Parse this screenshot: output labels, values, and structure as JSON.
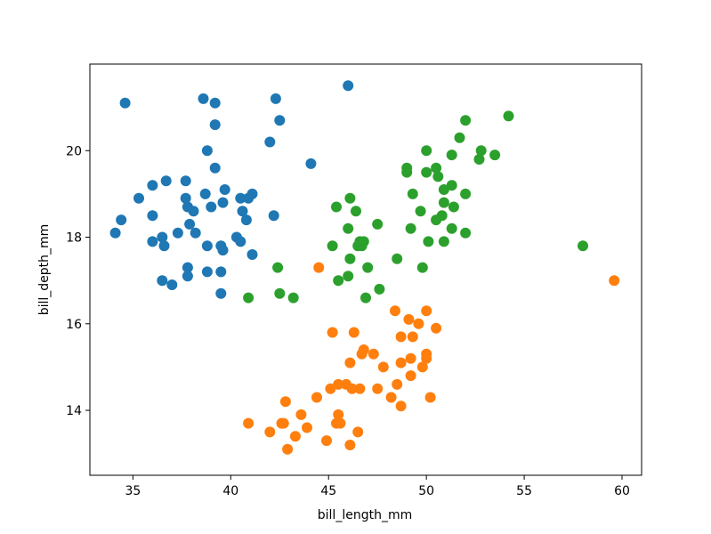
{
  "chart_data": {
    "type": "scatter",
    "title": "",
    "xlabel": "bill_length_mm",
    "ylabel": "bill_depth_mm",
    "xlim": [
      32.8,
      61.0
    ],
    "ylim": [
      12.5,
      22.0
    ],
    "xticks": [
      35,
      40,
      45,
      50,
      55,
      60
    ],
    "yticks": [
      14,
      16,
      18,
      20
    ],
    "grid": false,
    "legend": "none",
    "series": [
      {
        "color": "#1f77b4",
        "points": [
          [
            34.6,
            21.1
          ],
          [
            38.6,
            21.2
          ],
          [
            39.2,
            21.1
          ],
          [
            42.3,
            21.2
          ],
          [
            46.0,
            21.5
          ],
          [
            39.2,
            20.6
          ],
          [
            42.5,
            20.7
          ],
          [
            38.8,
            20.0
          ],
          [
            42.0,
            20.2
          ],
          [
            39.2,
            19.6
          ],
          [
            44.1,
            19.7
          ],
          [
            36.0,
            19.2
          ],
          [
            36.7,
            19.3
          ],
          [
            37.7,
            19.3
          ],
          [
            35.3,
            18.9
          ],
          [
            37.7,
            18.9
          ],
          [
            38.7,
            19.0
          ],
          [
            39.7,
            19.1
          ],
          [
            37.8,
            18.7
          ],
          [
            38.1,
            18.6
          ],
          [
            39.0,
            18.7
          ],
          [
            39.6,
            18.8
          ],
          [
            40.5,
            18.9
          ],
          [
            40.9,
            18.9
          ],
          [
            41.1,
            19.0
          ],
          [
            34.4,
            18.4
          ],
          [
            36.0,
            18.5
          ],
          [
            40.6,
            18.6
          ],
          [
            40.8,
            18.4
          ],
          [
            42.2,
            18.5
          ],
          [
            37.9,
            18.3
          ],
          [
            34.1,
            18.1
          ],
          [
            37.3,
            18.1
          ],
          [
            38.2,
            18.1
          ],
          [
            36.0,
            17.9
          ],
          [
            36.5,
            18.0
          ],
          [
            36.6,
            17.8
          ],
          [
            38.8,
            17.8
          ],
          [
            39.5,
            17.8
          ],
          [
            40.3,
            18.0
          ],
          [
            40.5,
            17.9
          ],
          [
            39.6,
            17.7
          ],
          [
            41.1,
            17.6
          ],
          [
            37.8,
            17.3
          ],
          [
            37.8,
            17.1
          ],
          [
            38.8,
            17.2
          ],
          [
            39.5,
            17.2
          ],
          [
            36.5,
            17.0
          ],
          [
            37.0,
            16.9
          ],
          [
            39.5,
            16.7
          ]
        ]
      },
      {
        "color": "#ff7f0e",
        "points": [
          [
            44.5,
            17.3
          ],
          [
            59.6,
            17.0
          ],
          [
            48.4,
            16.3
          ],
          [
            50.0,
            16.3
          ],
          [
            49.1,
            16.1
          ],
          [
            49.6,
            16.0
          ],
          [
            45.2,
            15.8
          ],
          [
            46.3,
            15.8
          ],
          [
            50.5,
            15.9
          ],
          [
            48.7,
            15.7
          ],
          [
            49.3,
            15.7
          ],
          [
            46.8,
            15.4
          ],
          [
            46.7,
            15.3
          ],
          [
            47.3,
            15.3
          ],
          [
            50.0,
            15.3
          ],
          [
            49.2,
            15.2
          ],
          [
            46.1,
            15.1
          ],
          [
            48.7,
            15.1
          ],
          [
            50.0,
            15.2
          ],
          [
            47.8,
            15.0
          ],
          [
            49.8,
            15.0
          ],
          [
            49.2,
            14.8
          ],
          [
            45.5,
            14.6
          ],
          [
            45.9,
            14.6
          ],
          [
            48.5,
            14.6
          ],
          [
            45.1,
            14.5
          ],
          [
            46.2,
            14.5
          ],
          [
            46.6,
            14.5
          ],
          [
            47.5,
            14.5
          ],
          [
            44.4,
            14.3
          ],
          [
            48.2,
            14.3
          ],
          [
            50.2,
            14.3
          ],
          [
            42.8,
            14.2
          ],
          [
            48.7,
            14.1
          ],
          [
            43.6,
            13.9
          ],
          [
            45.5,
            13.9
          ],
          [
            40.9,
            13.7
          ],
          [
            42.6,
            13.7
          ],
          [
            42.7,
            13.7
          ],
          [
            45.4,
            13.7
          ],
          [
            45.6,
            13.7
          ],
          [
            43.9,
            13.6
          ],
          [
            42.0,
            13.5
          ],
          [
            46.5,
            13.5
          ],
          [
            43.3,
            13.4
          ],
          [
            44.9,
            13.3
          ],
          [
            46.1,
            13.2
          ],
          [
            42.9,
            13.1
          ]
        ]
      },
      {
        "color": "#2ca02c",
        "points": [
          [
            54.2,
            20.8
          ],
          [
            52.0,
            20.7
          ],
          [
            51.7,
            20.3
          ],
          [
            50.0,
            20.0
          ],
          [
            52.8,
            20.0
          ],
          [
            51.3,
            19.9
          ],
          [
            52.7,
            19.8
          ],
          [
            53.5,
            19.9
          ],
          [
            49.0,
            19.6
          ],
          [
            50.5,
            19.6
          ],
          [
            49.0,
            19.5
          ],
          [
            50.0,
            19.5
          ],
          [
            50.6,
            19.4
          ],
          [
            51.3,
            19.2
          ],
          [
            50.9,
            19.1
          ],
          [
            49.3,
            19.0
          ],
          [
            52.0,
            19.0
          ],
          [
            46.1,
            18.9
          ],
          [
            50.9,
            18.8
          ],
          [
            45.4,
            18.7
          ],
          [
            51.4,
            18.7
          ],
          [
            46.4,
            18.6
          ],
          [
            49.7,
            18.6
          ],
          [
            50.8,
            18.5
          ],
          [
            50.5,
            18.4
          ],
          [
            47.5,
            18.3
          ],
          [
            46.0,
            18.2
          ],
          [
            49.2,
            18.2
          ],
          [
            51.3,
            18.2
          ],
          [
            52.0,
            18.1
          ],
          [
            46.6,
            17.9
          ],
          [
            46.8,
            17.9
          ],
          [
            46.5,
            17.8
          ],
          [
            45.2,
            17.8
          ],
          [
            50.1,
            17.9
          ],
          [
            50.9,
            17.9
          ],
          [
            46.7,
            17.8
          ],
          [
            58.0,
            17.8
          ],
          [
            46.1,
            17.5
          ],
          [
            48.5,
            17.5
          ],
          [
            42.4,
            17.3
          ],
          [
            47.0,
            17.3
          ],
          [
            49.8,
            17.3
          ],
          [
            45.5,
            17.0
          ],
          [
            46.0,
            17.1
          ],
          [
            47.6,
            16.8
          ],
          [
            42.5,
            16.7
          ],
          [
            40.9,
            16.6
          ],
          [
            43.2,
            16.6
          ],
          [
            46.9,
            16.6
          ]
        ]
      }
    ]
  }
}
